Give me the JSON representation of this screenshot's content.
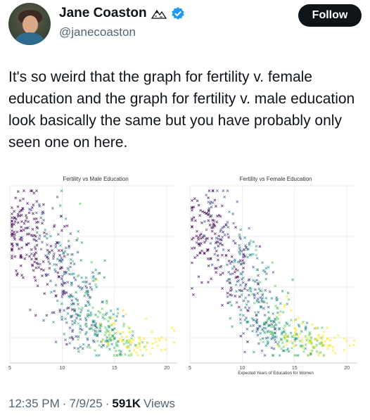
{
  "author": {
    "name": "Jane Coaston",
    "handle": "@janecoaston",
    "badge_icon": "mountain-icon",
    "verified_icon": "verified-icon",
    "verified_color": "#1d9bf0"
  },
  "follow_label": "Follow",
  "tweet": {
    "text": "It's so weird that the graph for fertility v. female education and the graph for fertility v. male education look basically the same but you have probably only seen one on here."
  },
  "meta": {
    "time": "12:35 PM",
    "dot1": "·",
    "date": "7/9/25",
    "dot2": "·",
    "views_count": "591K",
    "views_label": "Views"
  },
  "chart_data": [
    {
      "type": "scatter",
      "title": "Fertility vs Male Education",
      "xlabel": "",
      "ylabel": "",
      "xticks": [
        "5",
        "10",
        "15",
        "20"
      ],
      "xlim": [
        5,
        21
      ],
      "ylim": [
        1,
        8
      ],
      "grid": true,
      "colormap": [
        "#440154",
        "#3b528b",
        "#21918c",
        "#5ec962",
        "#fde725"
      ],
      "clusters": [
        {
          "x": 6.5,
          "y": 6.3,
          "sx": 1.2,
          "sy": 0.9,
          "n": 140
        },
        {
          "x": 9.5,
          "y": 5.2,
          "sx": 1.3,
          "sy": 1.0,
          "n": 130
        },
        {
          "x": 11.5,
          "y": 3.6,
          "sx": 1.3,
          "sy": 0.8,
          "n": 120
        },
        {
          "x": 13.5,
          "y": 2.4,
          "sx": 1.6,
          "sy": 0.5,
          "n": 140
        },
        {
          "x": 16,
          "y": 1.8,
          "sx": 1.8,
          "sy": 0.3,
          "n": 110
        }
      ]
    },
    {
      "type": "scatter",
      "title": "Fertility vs Female Education",
      "xlabel": "Expected Years of Education for Women",
      "ylabel": "",
      "xticks": [
        "5",
        "10",
        "15",
        "20"
      ],
      "xlim": [
        5,
        21
      ],
      "ylim": [
        1,
        8
      ],
      "grid": true,
      "colormap": [
        "#440154",
        "#3b528b",
        "#21918c",
        "#5ec962",
        "#fde725"
      ],
      "clusters": [
        {
          "x": 6.5,
          "y": 6.3,
          "sx": 1.1,
          "sy": 0.9,
          "n": 130
        },
        {
          "x": 9.5,
          "y": 5.0,
          "sx": 1.2,
          "sy": 1.0,
          "n": 130
        },
        {
          "x": 11.5,
          "y": 3.4,
          "sx": 1.3,
          "sy": 0.8,
          "n": 120
        },
        {
          "x": 13.5,
          "y": 2.3,
          "sx": 1.5,
          "sy": 0.5,
          "n": 140
        },
        {
          "x": 16.5,
          "y": 1.8,
          "sx": 1.7,
          "sy": 0.3,
          "n": 110
        }
      ]
    }
  ]
}
